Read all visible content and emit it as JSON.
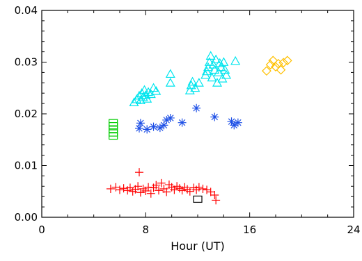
{
  "chart_data": {
    "type": "scatter",
    "title": "",
    "xlabel": "Hour (UT)",
    "ylabel": "",
    "xlim": [
      0,
      24
    ],
    "ylim": [
      0,
      0.04
    ],
    "x_ticks": [
      0,
      8,
      16,
      24
    ],
    "x_tick_labels": [
      "0",
      "8",
      "16",
      "24"
    ],
    "y_ticks": [
      0,
      0.01,
      0.02,
      0.03,
      0.04
    ],
    "y_tick_labels": [
      "0.00",
      "0.01",
      "0.02",
      "0.03",
      "0.04"
    ],
    "grid": false,
    "series": [
      {
        "marker": "triangle",
        "color": "#00e5ee",
        "points": [
          [
            7.1,
            0.0222
          ],
          [
            7.3,
            0.0228
          ],
          [
            7.5,
            0.0235
          ],
          [
            7.6,
            0.0226
          ],
          [
            7.7,
            0.024
          ],
          [
            7.8,
            0.0232
          ],
          [
            7.9,
            0.0246
          ],
          [
            8.0,
            0.0236
          ],
          [
            8.1,
            0.0229
          ],
          [
            8.2,
            0.0242
          ],
          [
            8.4,
            0.0238
          ],
          [
            8.6,
            0.025
          ],
          [
            8.8,
            0.0244
          ],
          [
            9.9,
            0.026
          ],
          [
            9.9,
            0.0277
          ],
          [
            11.4,
            0.0245
          ],
          [
            11.5,
            0.0255
          ],
          [
            11.6,
            0.0262
          ],
          [
            11.8,
            0.025
          ],
          [
            12.1,
            0.026
          ],
          [
            12.6,
            0.0275
          ],
          [
            12.7,
            0.0282
          ],
          [
            12.8,
            0.029
          ],
          [
            12.9,
            0.03
          ],
          [
            13.0,
            0.0312
          ],
          [
            13.1,
            0.027
          ],
          [
            13.2,
            0.0295
          ],
          [
            13.3,
            0.0285
          ],
          [
            13.4,
            0.0305
          ],
          [
            13.5,
            0.026
          ],
          [
            13.6,
            0.028
          ],
          [
            13.7,
            0.0298
          ],
          [
            13.8,
            0.029
          ],
          [
            13.9,
            0.0268
          ],
          [
            14.0,
            0.03
          ],
          [
            14.1,
            0.0285
          ],
          [
            14.2,
            0.0275
          ],
          [
            14.9,
            0.0302
          ]
        ]
      },
      {
        "marker": "asterisk",
        "color": "#1e50e6",
        "points": [
          [
            7.5,
            0.0172
          ],
          [
            7.6,
            0.0182
          ],
          [
            8.1,
            0.017
          ],
          [
            8.6,
            0.0175
          ],
          [
            9.1,
            0.0173
          ],
          [
            9.4,
            0.0178
          ],
          [
            9.6,
            0.0188
          ],
          [
            9.9,
            0.0192
          ],
          [
            10.8,
            0.0183
          ],
          [
            11.9,
            0.0211
          ],
          [
            13.3,
            0.0194
          ],
          [
            14.6,
            0.0185
          ],
          [
            14.8,
            0.0178
          ],
          [
            15.1,
            0.0183
          ]
        ]
      },
      {
        "marker": "square",
        "color": "#00cc00",
        "points": [
          [
            5.5,
            0.0157
          ],
          [
            5.5,
            0.0163
          ],
          [
            5.5,
            0.017
          ],
          [
            5.5,
            0.0177
          ],
          [
            5.5,
            0.0183
          ]
        ]
      },
      {
        "marker": "diamond",
        "color": "#ffc000",
        "points": [
          [
            17.3,
            0.0283
          ],
          [
            17.6,
            0.0295
          ],
          [
            17.8,
            0.0303
          ],
          [
            18.0,
            0.0291
          ],
          [
            18.2,
            0.0297
          ],
          [
            18.4,
            0.0285
          ],
          [
            18.6,
            0.0299
          ],
          [
            18.9,
            0.0303
          ]
        ]
      },
      {
        "marker": "plus",
        "color": "#ff0000",
        "points": [
          [
            5.3,
            0.0055
          ],
          [
            5.7,
            0.0058
          ],
          [
            6.0,
            0.0053
          ],
          [
            6.3,
            0.0056
          ],
          [
            6.6,
            0.0052
          ],
          [
            6.8,
            0.0057
          ],
          [
            7.0,
            0.005
          ],
          [
            7.2,
            0.0054
          ],
          [
            7.4,
            0.006
          ],
          [
            7.5,
            0.0087
          ],
          [
            7.6,
            0.0048
          ],
          [
            7.8,
            0.0055
          ],
          [
            8.0,
            0.0051
          ],
          [
            8.2,
            0.0058
          ],
          [
            8.4,
            0.0046
          ],
          [
            8.6,
            0.0057
          ],
          [
            8.8,
            0.0062
          ],
          [
            9.0,
            0.0052
          ],
          [
            9.2,
            0.0066
          ],
          [
            9.4,
            0.0055
          ],
          [
            9.6,
            0.0049
          ],
          [
            9.8,
            0.0063
          ],
          [
            10.0,
            0.0058
          ],
          [
            10.2,
            0.0053
          ],
          [
            10.4,
            0.006
          ],
          [
            10.6,
            0.0056
          ],
          [
            10.8,
            0.0052
          ],
          [
            11.0,
            0.0058
          ],
          [
            11.2,
            0.0054
          ],
          [
            11.4,
            0.005
          ],
          [
            11.7,
            0.0057
          ],
          [
            11.9,
            0.0053
          ],
          [
            12.1,
            0.0058
          ],
          [
            12.4,
            0.0055
          ],
          [
            12.7,
            0.0053
          ],
          [
            13.0,
            0.0049
          ],
          [
            13.3,
            0.0043
          ],
          [
            13.4,
            0.0033
          ]
        ]
      },
      {
        "marker": "square",
        "color": "#000000",
        "points": [
          [
            12.0,
            0.0035
          ]
        ]
      }
    ]
  }
}
